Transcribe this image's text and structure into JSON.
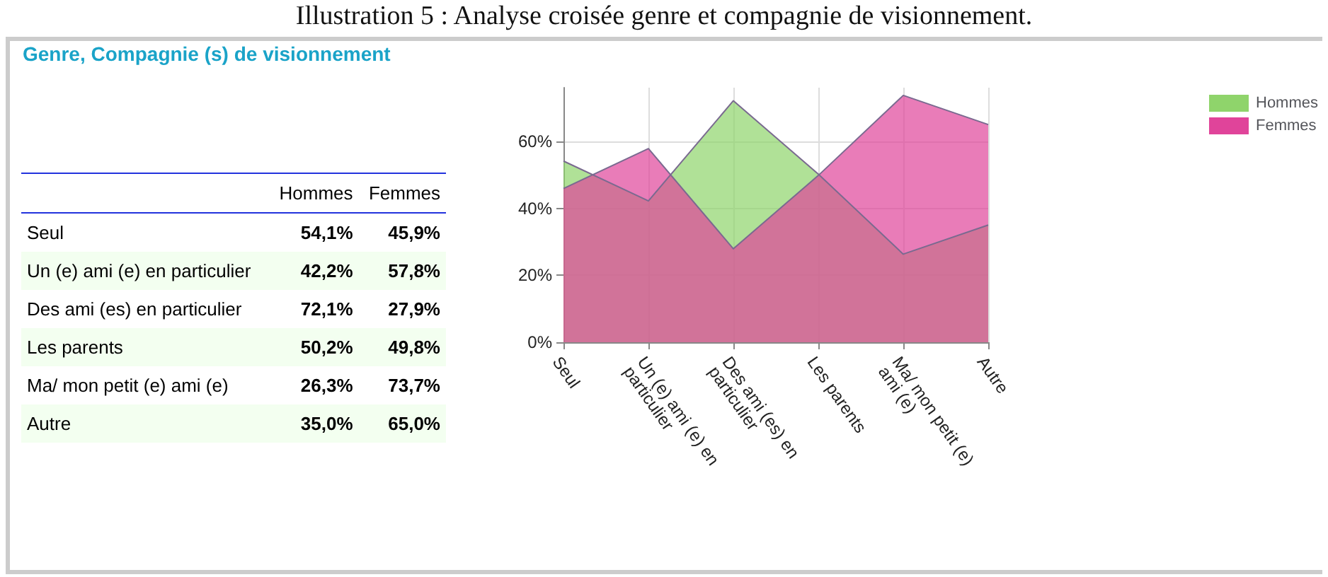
{
  "chart_data": [
    {
      "type": "other",
      "title": "Genre, Compagnie (s) de visionnement",
      "annotations": [
        "Illustration 5 : Analyse croisée genre et compagnie de visionnement."
      ],
      "categories": [
        "Seul",
        "Un (e) ami (e) en particulier",
        "Des ami (es) en particulier",
        "Les parents",
        "Ma/ mon petit (e) ami (e)",
        "Autre"
      ],
      "series": [
        {
          "name": "Hommes",
          "values": [
            54.1,
            42.2,
            72.1,
            50.2,
            26.3,
            35.0
          ],
          "value_labels": [
            "54,1%",
            "42,2%",
            "72,1%",
            "50,2%",
            "26,3%",
            "35,0%"
          ]
        },
        {
          "name": "Femmes",
          "values": [
            45.9,
            57.8,
            27.9,
            49.8,
            73.7,
            65.0
          ],
          "value_labels": [
            "45,9%",
            "57,8%",
            "27,9%",
            "49,8%",
            "73,7%",
            "65,0%"
          ]
        }
      ]
    },
    {
      "type": "area",
      "categories": [
        "Seul",
        "Un (e) ami (e) en particulier",
        "Des ami (es) en particulier",
        "Les parents",
        "Ma/ mon petit (e) ami (e)",
        "Autre"
      ],
      "series": [
        {
          "name": "Hommes",
          "color": "#8fd46b",
          "values": [
            54.1,
            42.2,
            72.1,
            50.2,
            26.3,
            35.0
          ]
        },
        {
          "name": "Femmes",
          "color": "#e0449a",
          "values": [
            45.9,
            57.8,
            27.9,
            49.8,
            73.7,
            65.0
          ]
        }
      ],
      "ylim": [
        0,
        76
      ],
      "yticks": [
        {
          "value": 0,
          "label": "0%"
        },
        {
          "value": 20,
          "label": "20%"
        },
        {
          "value": 40,
          "label": "40%"
        },
        {
          "value": 60,
          "label": "60%"
        }
      ],
      "grid": true,
      "legend": "top right"
    }
  ]
}
